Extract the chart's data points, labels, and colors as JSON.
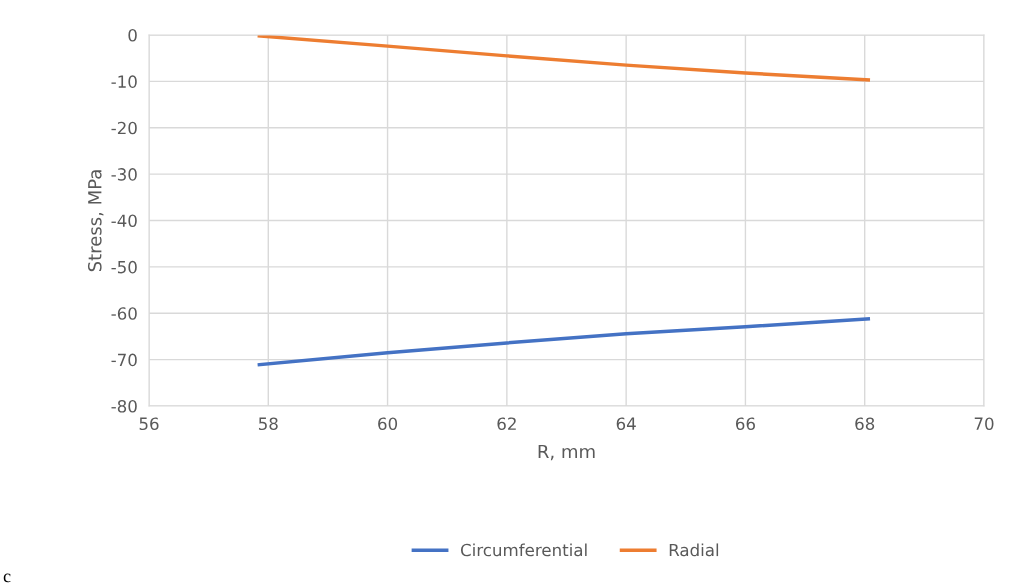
{
  "chart_data": {
    "type": "line",
    "xlabel": "R, mm",
    "ylabel": "Stress, MPa",
    "series": [
      {
        "name": "Circumferential",
        "color": "#4472c4",
        "x": [
          57.85,
          60,
          62,
          64,
          66,
          68.06
        ],
        "values": [
          -71.1,
          -68.5,
          -66.4,
          -64.4,
          -62.9,
          -61.2
        ]
      },
      {
        "name": "Radial",
        "color": "#ed7d31",
        "x": [
          57.85,
          60,
          62,
          64,
          66,
          68.06
        ],
        "values": [
          -0.2,
          -2.4,
          -4.5,
          -6.5,
          -8.2,
          -9.7
        ]
      }
    ],
    "xlim": [
      56,
      70
    ],
    "xticks": [
      56,
      58,
      60,
      62,
      64,
      66,
      68,
      70
    ],
    "ylim": [
      -80,
      0
    ],
    "yticks": [
      -80,
      -70,
      -60,
      -50,
      -40,
      -30,
      -20,
      -10,
      0
    ],
    "grid": true,
    "legend": "bottom",
    "marker": "none",
    "line_style": "solid",
    "annotations": [
      "c"
    ]
  }
}
